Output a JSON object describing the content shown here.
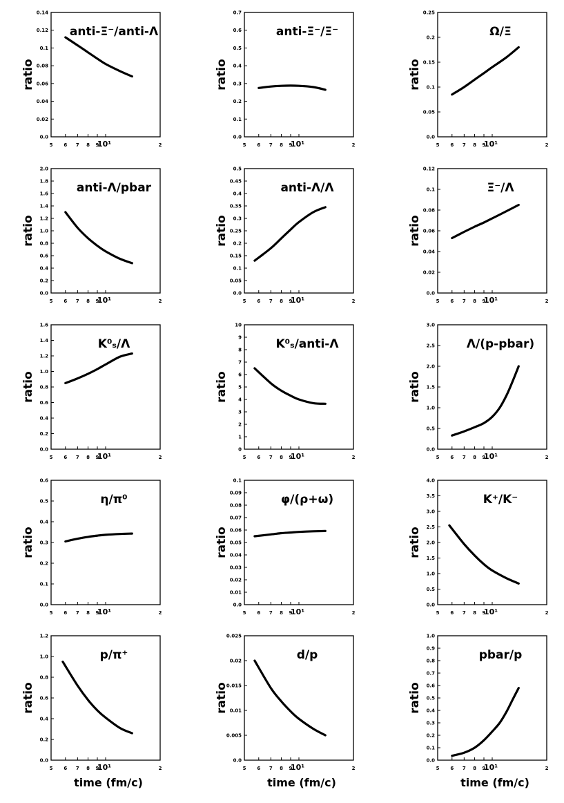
{
  "chart_data": [
    {
      "type": "line",
      "title": "anti-Ξ⁻/anti-Λ",
      "ylabel": "ratio",
      "xlabel": "",
      "xscale": "log",
      "xlim": [
        5,
        20
      ],
      "ylim": [
        0,
        0.14
      ],
      "yticks": [
        "0.0",
        "0.02",
        "0.04",
        "0.06",
        "0.08",
        "0.1",
        "0.12",
        "0.14"
      ],
      "xticks": [
        "5",
        "6",
        "7",
        "8",
        "9",
        "10¹",
        "2"
      ],
      "x": [
        6,
        7,
        8,
        9,
        10,
        12,
        14
      ],
      "y": [
        0.112,
        0.103,
        0.095,
        0.088,
        0.082,
        0.074,
        0.068
      ]
    },
    {
      "type": "line",
      "title": "anti-Ξ⁻/Ξ⁻",
      "ylabel": "ratio",
      "xlabel": "",
      "xscale": "log",
      "xlim": [
        5,
        20
      ],
      "ylim": [
        0,
        0.7
      ],
      "yticks": [
        "0.0",
        "0.1",
        "0.2",
        "0.3",
        "0.4",
        "0.5",
        "0.6",
        "0.7"
      ],
      "xticks": [
        "5",
        "6",
        "7",
        "8",
        "9",
        "10¹",
        "2"
      ],
      "x": [
        6,
        7,
        8,
        9,
        10,
        12,
        14
      ],
      "y": [
        0.275,
        0.283,
        0.287,
        0.288,
        0.287,
        0.28,
        0.265
      ]
    },
    {
      "type": "line",
      "title": "Ω/Ξ",
      "ylabel": "ratio",
      "xlabel": "",
      "xscale": "log",
      "xlim": [
        5,
        20
      ],
      "ylim": [
        0,
        0.25
      ],
      "yticks": [
        "0.0",
        "0.05",
        "0.1",
        "0.15",
        "0.2",
        "0.25"
      ],
      "xticks": [
        "5",
        "6",
        "7",
        "8",
        "9",
        "10¹",
        "2"
      ],
      "x": [
        6,
        7,
        8,
        9,
        10,
        12,
        14
      ],
      "y": [
        0.085,
        0.1,
        0.115,
        0.128,
        0.14,
        0.16,
        0.18
      ]
    },
    {
      "type": "line",
      "title": "anti-Λ/pbar",
      "ylabel": "ratio",
      "xlabel": "",
      "xscale": "log",
      "xlim": [
        5,
        20
      ],
      "ylim": [
        0,
        2.0
      ],
      "yticks": [
        "0.0",
        "0.2",
        "0.4",
        "0.6",
        "0.8",
        "1.0",
        "1.2",
        "1.4",
        "1.6",
        "1.8",
        "2.0"
      ],
      "xticks": [
        "5",
        "6",
        "7",
        "8",
        "9",
        "10¹",
        "2"
      ],
      "x": [
        6,
        7,
        8,
        9,
        10,
        12,
        14
      ],
      "y": [
        1.3,
        1.05,
        0.88,
        0.76,
        0.67,
        0.55,
        0.48
      ]
    },
    {
      "type": "line",
      "title": "anti-Λ/Λ",
      "ylabel": "ratio",
      "xlabel": "",
      "xscale": "log",
      "xlim": [
        5,
        20
      ],
      "ylim": [
        0,
        0.5
      ],
      "yticks": [
        "0.0",
        "0.05",
        "0.1",
        "0.15",
        "0.2",
        "0.25",
        "0.3",
        "0.35",
        "0.4",
        "0.45",
        "0.5"
      ],
      "xticks": [
        "5",
        "6",
        "7",
        "8",
        "9",
        "10¹",
        "2"
      ],
      "x": [
        5.7,
        7,
        8,
        9,
        10,
        12,
        14
      ],
      "y": [
        0.13,
        0.18,
        0.22,
        0.255,
        0.285,
        0.325,
        0.345
      ]
    },
    {
      "type": "line",
      "title": "Ξ⁻/Λ",
      "ylabel": "ratio",
      "xlabel": "",
      "xscale": "log",
      "xlim": [
        5,
        20
      ],
      "ylim": [
        0,
        0.12
      ],
      "yticks": [
        "0.0",
        "0.02",
        "0.04",
        "0.06",
        "0.08",
        "0.1",
        "0.12"
      ],
      "xticks": [
        "5",
        "6",
        "7",
        "8",
        "9",
        "10¹",
        "2"
      ],
      "x": [
        6,
        7,
        8,
        9,
        10,
        12,
        14
      ],
      "y": [
        0.053,
        0.059,
        0.064,
        0.068,
        0.072,
        0.079,
        0.085
      ]
    },
    {
      "type": "line",
      "title": "K⁰ₛ/Λ",
      "ylabel": "ratio",
      "xlabel": "",
      "xscale": "log",
      "xlim": [
        5,
        20
      ],
      "ylim": [
        0,
        1.6
      ],
      "yticks": [
        "0.0",
        "0.2",
        "0.4",
        "0.6",
        "0.8",
        "1.0",
        "1.2",
        "1.4",
        "1.6"
      ],
      "xticks": [
        "5",
        "6",
        "7",
        "8",
        "9",
        "10¹",
        "2"
      ],
      "x": [
        6,
        7,
        8,
        9,
        10,
        12,
        14
      ],
      "y": [
        0.85,
        0.91,
        0.97,
        1.03,
        1.09,
        1.19,
        1.23
      ]
    },
    {
      "type": "line",
      "title": "K⁰ₛ/anti-Λ",
      "ylabel": "ratio",
      "xlabel": "",
      "xscale": "log",
      "xlim": [
        5,
        20
      ],
      "ylim": [
        0,
        10
      ],
      "yticks": [
        "0",
        "1",
        "2",
        "3",
        "4",
        "5",
        "6",
        "7",
        "8",
        "9",
        "10"
      ],
      "xticks": [
        "5",
        "6",
        "7",
        "8",
        "9",
        "10¹",
        "2"
      ],
      "x": [
        5.7,
        7,
        8,
        9,
        10,
        12,
        14
      ],
      "y": [
        6.5,
        5.3,
        4.7,
        4.3,
        4.0,
        3.7,
        3.65
      ]
    },
    {
      "type": "line",
      "title": "Λ/(p-pbar)",
      "ylabel": "ratio",
      "xlabel": "",
      "xscale": "log",
      "xlim": [
        5,
        20
      ],
      "ylim": [
        0,
        3.0
      ],
      "yticks": [
        "0.0",
        "0.5",
        "1.0",
        "1.5",
        "2.0",
        "2.5",
        "3.0"
      ],
      "xticks": [
        "5",
        "6",
        "7",
        "8",
        "9",
        "10¹",
        "2"
      ],
      "x": [
        6,
        7,
        8,
        9,
        10,
        11,
        12,
        13,
        14
      ],
      "y": [
        0.33,
        0.43,
        0.53,
        0.63,
        0.78,
        1.0,
        1.3,
        1.65,
        2.0
      ]
    },
    {
      "type": "line",
      "title": "η/π⁰",
      "ylabel": "ratio",
      "xlabel": "",
      "xscale": "log",
      "xlim": [
        5,
        20
      ],
      "ylim": [
        0,
        0.6
      ],
      "yticks": [
        "0.0",
        "0.1",
        "0.2",
        "0.3",
        "0.4",
        "0.5",
        "0.6"
      ],
      "xticks": [
        "5",
        "6",
        "7",
        "8",
        "9",
        "10¹",
        "2"
      ],
      "x": [
        6,
        7,
        8,
        9,
        10,
        12,
        14
      ],
      "y": [
        0.305,
        0.318,
        0.327,
        0.333,
        0.337,
        0.341,
        0.343
      ]
    },
    {
      "type": "line",
      "title": "φ/(ρ+ω)",
      "ylabel": "ratio",
      "xlabel": "",
      "xscale": "log",
      "xlim": [
        5,
        20
      ],
      "ylim": [
        0,
        0.1
      ],
      "yticks": [
        "0.0",
        "0.01",
        "0.02",
        "0.03",
        "0.04",
        "0.05",
        "0.06",
        "0.07",
        "0.08",
        "0.09",
        "0.1"
      ],
      "xticks": [
        "5",
        "6",
        "7",
        "8",
        "9",
        "10¹",
        "2"
      ],
      "x": [
        5.7,
        7,
        8,
        9,
        10,
        12,
        14
      ],
      "y": [
        0.055,
        0.0565,
        0.0575,
        0.058,
        0.0585,
        0.059,
        0.0592
      ]
    },
    {
      "type": "line",
      "title": "K⁺/K⁻",
      "ylabel": "ratio",
      "xlabel": "",
      "xscale": "log",
      "xlim": [
        5,
        20
      ],
      "ylim": [
        0,
        4.0
      ],
      "yticks": [
        "0.0",
        "0.5",
        "1.0",
        "1.5",
        "2.0",
        "2.5",
        "3.0",
        "3.5",
        "4.0"
      ],
      "xticks": [
        "5",
        "6",
        "7",
        "8",
        "9",
        "10¹",
        "2"
      ],
      "x": [
        5.8,
        7,
        8,
        9,
        10,
        12,
        14
      ],
      "y": [
        2.55,
        1.95,
        1.58,
        1.3,
        1.1,
        0.85,
        0.68
      ]
    },
    {
      "type": "line",
      "title": "p/π⁺",
      "ylabel": "ratio",
      "xlabel": "time (fm/c)",
      "xscale": "log",
      "xlim": [
        5,
        20
      ],
      "ylim": [
        0,
        1.2
      ],
      "yticks": [
        "0.0",
        "0.2",
        "0.4",
        "0.6",
        "0.8",
        "1.0",
        "1.2"
      ],
      "xticks": [
        "5",
        "6",
        "7",
        "8",
        "9",
        "10¹",
        "2"
      ],
      "x": [
        5.8,
        7,
        8,
        9,
        10,
        12,
        14
      ],
      "y": [
        0.95,
        0.72,
        0.58,
        0.48,
        0.41,
        0.31,
        0.26
      ]
    },
    {
      "type": "line",
      "title": "d/p",
      "ylabel": "ratio",
      "xlabel": "time (fm/c)",
      "xscale": "log",
      "xlim": [
        5,
        20
      ],
      "ylim": [
        0,
        0.025
      ],
      "yticks": [
        "0.0",
        "0.005",
        "0.01",
        "0.015",
        "0.02",
        "0.025"
      ],
      "xticks": [
        "5",
        "6",
        "7",
        "8",
        "9",
        "10¹",
        "2"
      ],
      "x": [
        5.7,
        7,
        8,
        9,
        10,
        12,
        14
      ],
      "y": [
        0.02,
        0.0145,
        0.0118,
        0.0098,
        0.0083,
        0.0063,
        0.005
      ]
    },
    {
      "type": "line",
      "title": "pbar/p",
      "ylabel": "ratio",
      "xlabel": "time (fm/c)",
      "xscale": "log",
      "xlim": [
        5,
        20
      ],
      "ylim": [
        0,
        1.0
      ],
      "yticks": [
        "0.0",
        "0.1",
        "0.2",
        "0.3",
        "0.4",
        "0.5",
        "0.6",
        "0.7",
        "0.8",
        "0.9",
        "1.0"
      ],
      "xticks": [
        "5",
        "6",
        "7",
        "8",
        "9",
        "10¹",
        "2"
      ],
      "x": [
        6,
        7,
        8,
        9,
        10,
        11,
        12,
        13,
        14
      ],
      "y": [
        0.035,
        0.06,
        0.1,
        0.16,
        0.23,
        0.3,
        0.39,
        0.49,
        0.58
      ]
    }
  ]
}
